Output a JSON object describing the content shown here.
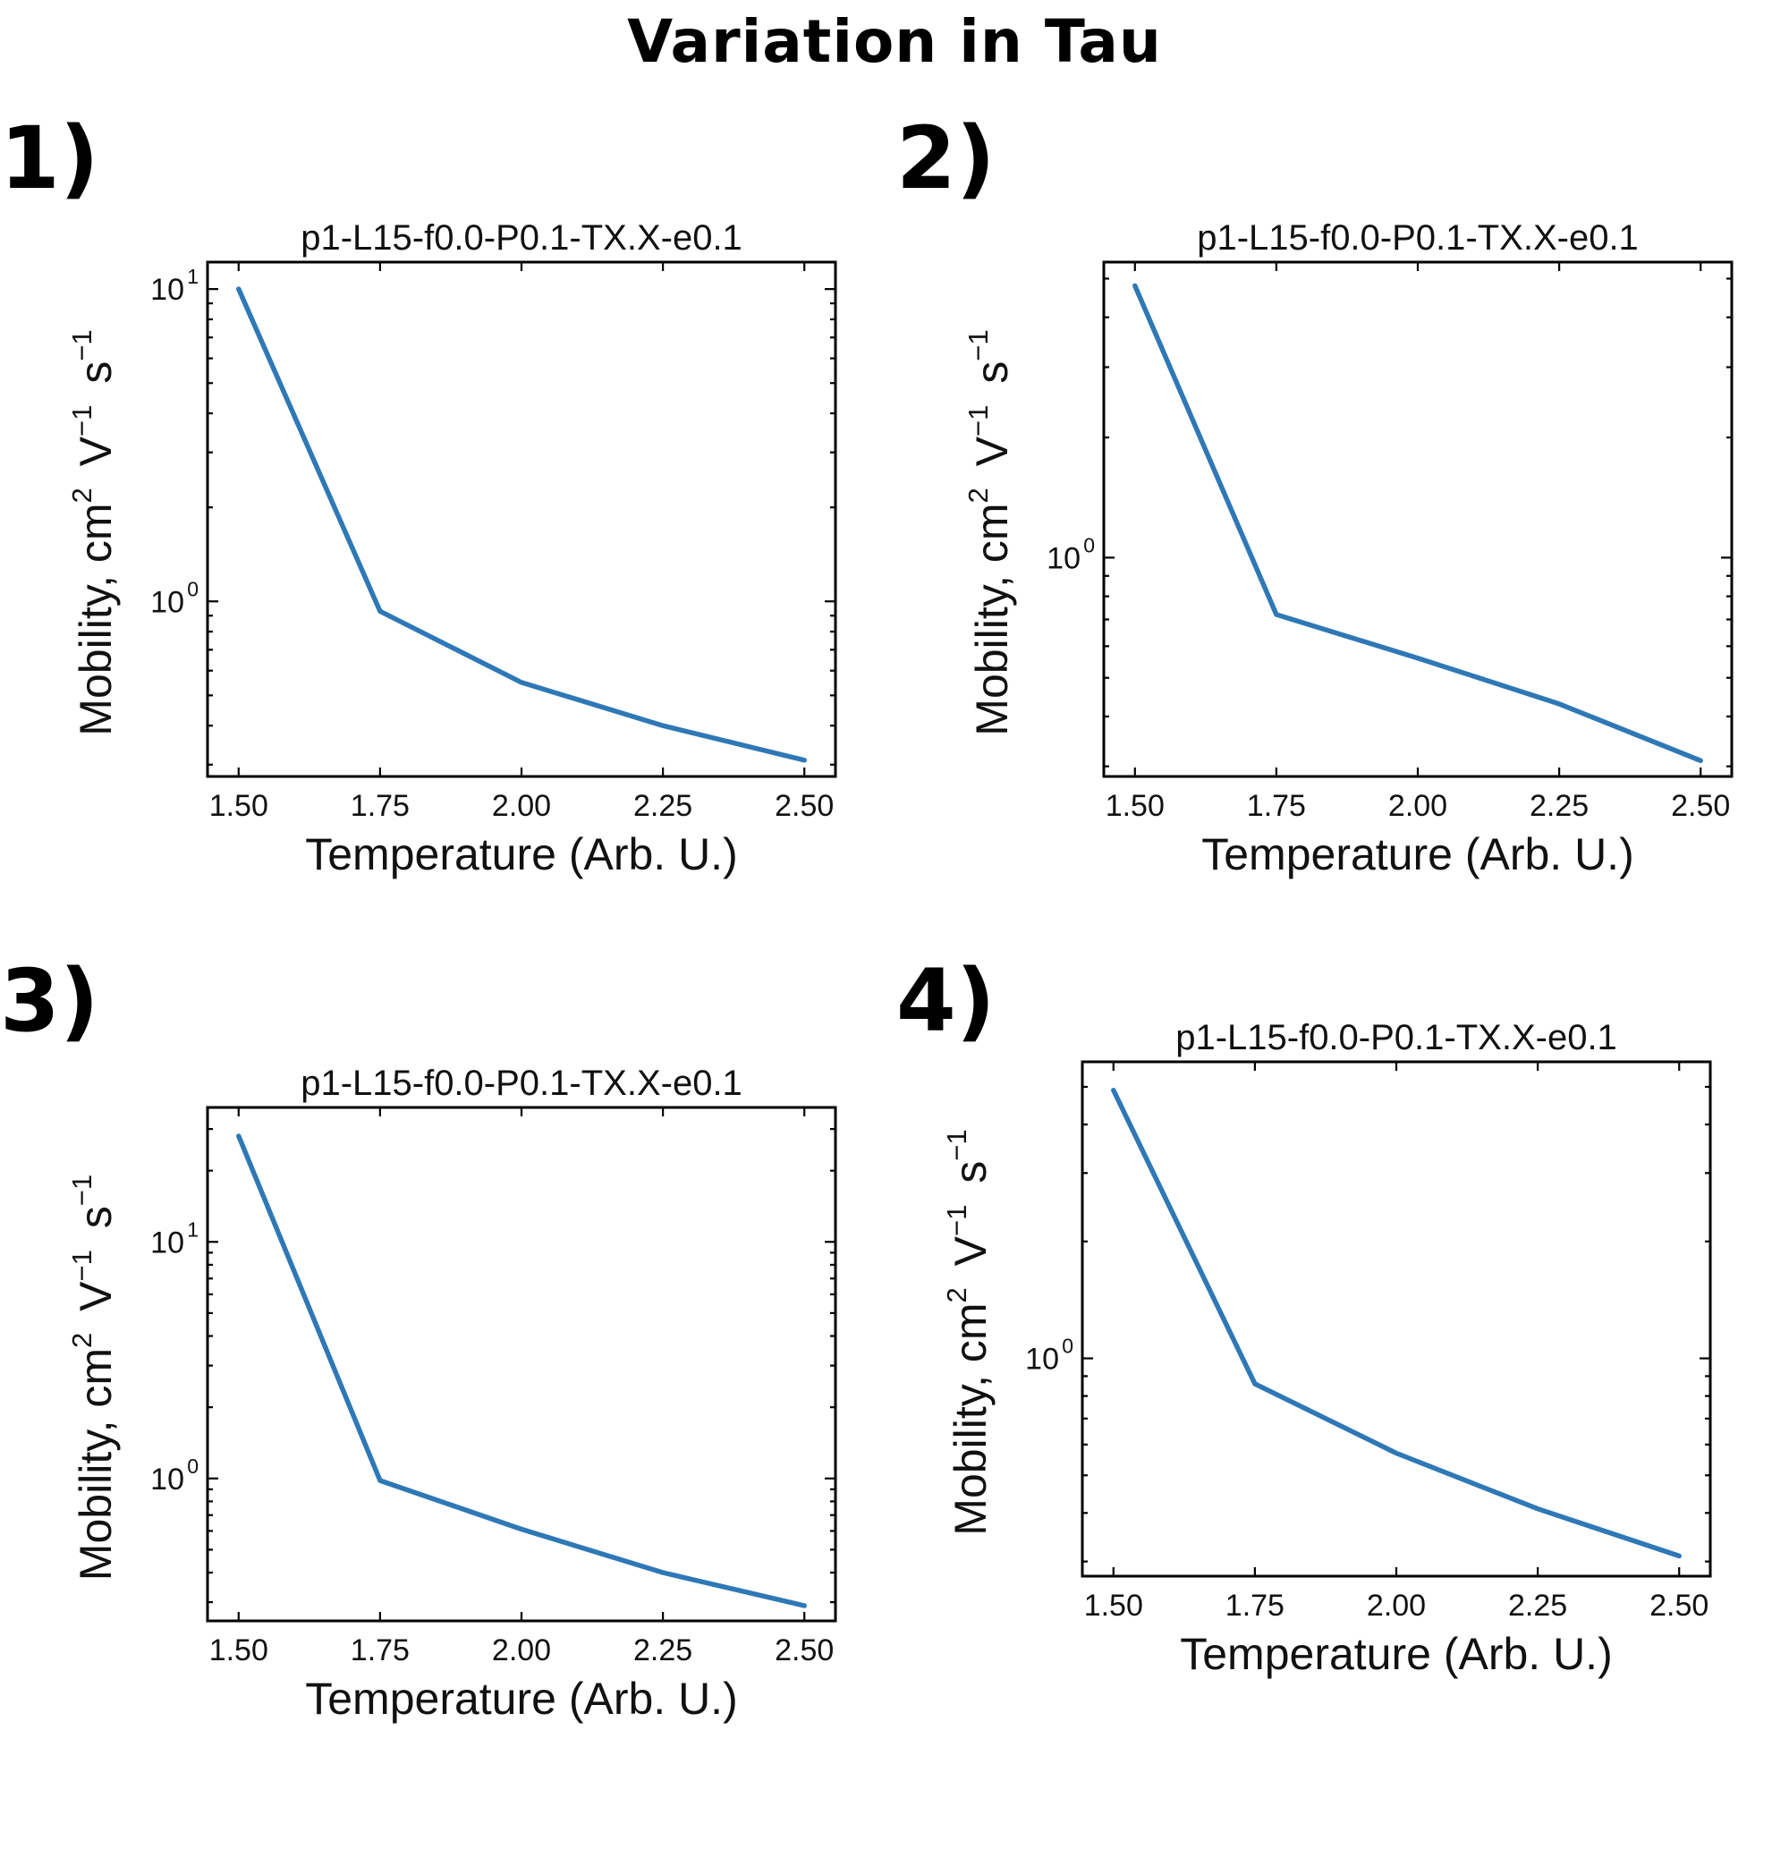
{
  "figure": {
    "title": "Variation in Tau"
  },
  "colors": {
    "series": "#2f78b6",
    "axes": "#000000",
    "background": "#ffffff"
  },
  "chart_data": [
    {
      "type": "line",
      "panel_label": "1)",
      "title": "p1-L15-f0.0-P0.1-TX.X-e0.1",
      "xlabel": "Temperature (Arb. U.)",
      "ylabel": "Mobility, cm^2 V^-1 s^-1",
      "yscale": "log",
      "xlim": [
        1.445,
        2.555
      ],
      "ylim": [
        0.275,
        12.2
      ],
      "xticks": [
        1.5,
        1.75,
        2.0,
        2.25,
        2.5
      ],
      "xtick_labels": [
        "1.50",
        "1.75",
        "2.00",
        "2.25",
        "2.50"
      ],
      "yticks_major": [
        1,
        10
      ],
      "yticks_minor": [
        0.3,
        0.4,
        0.5,
        0.6,
        0.7,
        0.8,
        0.9,
        2,
        3,
        4,
        5,
        6,
        7,
        8,
        9
      ],
      "grid": false,
      "x": [
        1.5,
        1.75,
        2.0,
        2.25,
        2.5
      ],
      "y": [
        10.0,
        0.93,
        0.55,
        0.4,
        0.31
      ]
    },
    {
      "type": "line",
      "panel_label": "2)",
      "title": "p1-L15-f0.0-P0.1-TX.X-e0.1",
      "xlabel": "Temperature (Arb. U.)",
      "ylabel": "Mobility, cm^2 V^-1 s^-1",
      "yscale": "log",
      "xlim": [
        1.445,
        2.555
      ],
      "ylim": [
        0.283,
        5.5
      ],
      "xticks": [
        1.5,
        1.75,
        2.0,
        2.25,
        2.5
      ],
      "xtick_labels": [
        "1.50",
        "1.75",
        "2.00",
        "2.25",
        "2.50"
      ],
      "yticks_major": [
        1
      ],
      "yticks_minor": [
        0.3,
        0.4,
        0.5,
        0.6,
        0.7,
        0.8,
        0.9,
        2,
        3,
        4,
        5
      ],
      "grid": false,
      "x": [
        1.5,
        1.75,
        2.0,
        2.25,
        2.5
      ],
      "y": [
        4.8,
        0.72,
        0.56,
        0.43,
        0.31
      ]
    },
    {
      "type": "line",
      "panel_label": "3)",
      "title": "p1-L15-f0.0-P0.1-TX.X-e0.1",
      "xlabel": "Temperature (Arb. U.)",
      "ylabel": "Mobility, cm^2 V^-1 s^-1",
      "yscale": "log",
      "xlim": [
        1.445,
        2.555
      ],
      "ylim": [
        0.25,
        37
      ],
      "xticks": [
        1.5,
        1.75,
        2.0,
        2.25,
        2.5
      ],
      "xtick_labels": [
        "1.50",
        "1.75",
        "2.00",
        "2.25",
        "2.50"
      ],
      "yticks_major": [
        1,
        10
      ],
      "yticks_minor": [
        0.3,
        0.4,
        0.5,
        0.6,
        0.7,
        0.8,
        0.9,
        2,
        3,
        4,
        5,
        6,
        7,
        8,
        9,
        20,
        30
      ],
      "grid": false,
      "x": [
        1.5,
        1.75,
        2.0,
        2.25,
        2.5
      ],
      "y": [
        28.0,
        0.98,
        0.61,
        0.4,
        0.29
      ]
    },
    {
      "type": "line",
      "panel_label": "4)",
      "title": "p1-L15-f0.0-P0.1-TX.X-e0.1",
      "xlabel": "Temperature (Arb. U.)",
      "ylabel": "Mobility, cm^2 V^-1 s^-1",
      "yscale": "log",
      "xlim": [
        1.445,
        2.555
      ],
      "ylim": [
        0.275,
        5.8
      ],
      "xticks": [
        1.5,
        1.75,
        2.0,
        2.25,
        2.5
      ],
      "xtick_labels": [
        "1.50",
        "1.75",
        "2.00",
        "2.25",
        "2.50"
      ],
      "yticks_major": [
        1
      ],
      "yticks_minor": [
        0.3,
        0.4,
        0.5,
        0.6,
        0.7,
        0.8,
        0.9,
        2,
        3,
        4,
        5
      ],
      "grid": false,
      "x": [
        1.5,
        1.75,
        2.0,
        2.25,
        2.5
      ],
      "y": [
        4.9,
        0.86,
        0.57,
        0.41,
        0.31
      ]
    }
  ]
}
